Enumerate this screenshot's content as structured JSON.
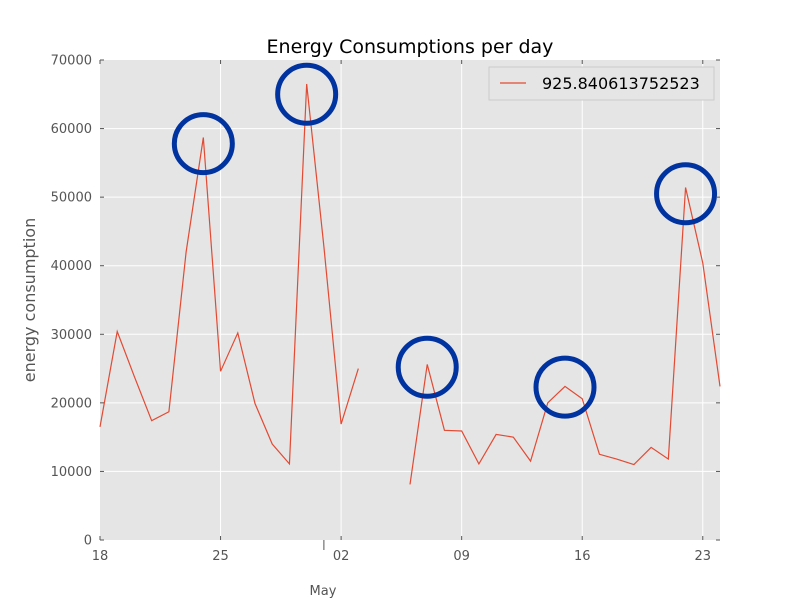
{
  "chart_data": {
    "type": "line",
    "title": "Energy Consumptions per day",
    "xlabel": "",
    "ylabel": "energy consumption",
    "ylim": [
      0,
      70000
    ],
    "xlim": [
      "2016-04-18",
      "2016-05-24"
    ],
    "y_ticks": [
      "0",
      "10000",
      "20000",
      "30000",
      "40000",
      "50000",
      "60000",
      "70000"
    ],
    "x_ticks": [
      {
        "date": "2016-04-18",
        "label": "18"
      },
      {
        "date": "2016-04-25",
        "label": "25"
      },
      {
        "date": "2016-05-02",
        "label": "02"
      },
      {
        "date": "2016-05-09",
        "label": "09"
      },
      {
        "date": "2016-05-16",
        "label": "16"
      },
      {
        "date": "2016-05-23",
        "label": "23"
      }
    ],
    "month_label": "May",
    "grid": true,
    "legend_position": "top-right",
    "series": [
      {
        "name": "925.840613752523",
        "color": "#e24a33",
        "segments": [
          {
            "x": [
              "2016-04-18",
              "2016-04-19",
              "2016-04-20",
              "2016-04-21",
              "2016-04-22",
              "2016-04-23",
              "2016-04-24",
              "2016-04-25",
              "2016-04-26",
              "2016-04-27",
              "2016-04-28",
              "2016-04-29",
              "2016-04-30",
              "2016-05-01",
              "2016-05-02",
              "2016-05-03"
            ],
            "y": [
              16500,
              30400,
              23800,
              17400,
              18700,
              42000,
              58700,
              24600,
              30200,
              19900,
              14000,
              11100,
              66500,
              42800,
              16900,
              25000
            ]
          },
          {
            "x": [
              "2016-05-06",
              "2016-05-07",
              "2016-05-08",
              "2016-05-09",
              "2016-05-10",
              "2016-05-11",
              "2016-05-12",
              "2016-05-13",
              "2016-05-14",
              "2016-05-15",
              "2016-05-16",
              "2016-05-17",
              "2016-05-18",
              "2016-05-19",
              "2016-05-20",
              "2016-05-21",
              "2016-05-22",
              "2016-05-23",
              "2016-05-24"
            ],
            "y": [
              8100,
              25600,
              16000,
              15900,
              11100,
              15400,
              15000,
              11500,
              20000,
              22400,
              20600,
              12500,
              11800,
              11000,
              13500,
              11800,
              51400,
              40400,
              22400
            ]
          }
        ]
      }
    ],
    "annotations": {
      "type": "circle",
      "color": "#0033a0",
      "points": [
        {
          "x": "2016-04-24",
          "y": 57800
        },
        {
          "x": "2016-04-30",
          "y": 65000
        },
        {
          "x": "2016-05-07",
          "y": 25200
        },
        {
          "x": "2016-05-15",
          "y": 22300
        },
        {
          "x": "2016-05-22",
          "y": 50500
        }
      ]
    }
  }
}
